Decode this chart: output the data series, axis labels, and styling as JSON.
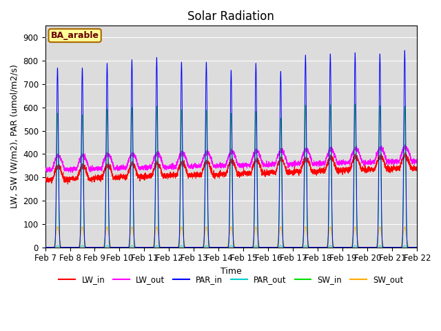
{
  "title": "Solar Radiation",
  "xlabel": "Time",
  "ylabel": "LW, SW (W/m2), PAR (umol/m2/s)",
  "annotation": "BA_arable",
  "ylim": [
    0,
    950
  ],
  "yticks": [
    0,
    100,
    200,
    300,
    400,
    500,
    600,
    700,
    800,
    900
  ],
  "xtick_labels": [
    "Feb 7",
    "Feb 8",
    "Feb 9",
    "Feb 10",
    "Feb 11",
    "Feb 12",
    "Feb 13",
    "Feb 14",
    "Feb 15",
    "Feb 16",
    "Feb 17",
    "Feb 18",
    "Feb 19",
    "Feb 20",
    "Feb 21",
    "Feb 22"
  ],
  "colors": {
    "LW_in": "#ff0000",
    "LW_out": "#ff00ff",
    "PAR_in": "#0000ff",
    "PAR_out": "#00cccc",
    "SW_in": "#00dd00",
    "SW_out": "#ffaa00"
  },
  "background_color": "#dcdcdc",
  "annotation_bg": "#ffff99",
  "annotation_border": "#aa6600",
  "annotation_text_color": "#660000",
  "title_fontsize": 12,
  "label_fontsize": 9,
  "tick_fontsize": 8.5
}
